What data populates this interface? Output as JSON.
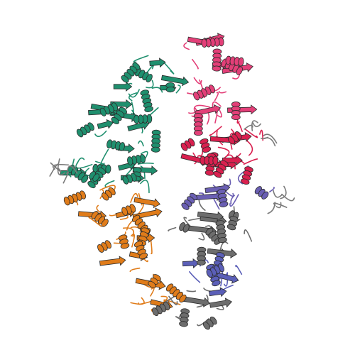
{
  "background": "#ffffff",
  "outline_color": "#2b2b2b",
  "chains": [
    {
      "id": "green",
      "color": "#1f8f6e"
    },
    {
      "id": "pink",
      "color": "#e33f78"
    },
    {
      "id": "red",
      "color": "#d9204f"
    },
    {
      "id": "purple",
      "color": "#6a5fb3"
    },
    {
      "id": "orange",
      "color": "#e07c1a"
    },
    {
      "id": "gray",
      "color": "#6d6d6d"
    },
    {
      "id": "blue",
      "color": "#5b5fb8"
    }
  ]
}
